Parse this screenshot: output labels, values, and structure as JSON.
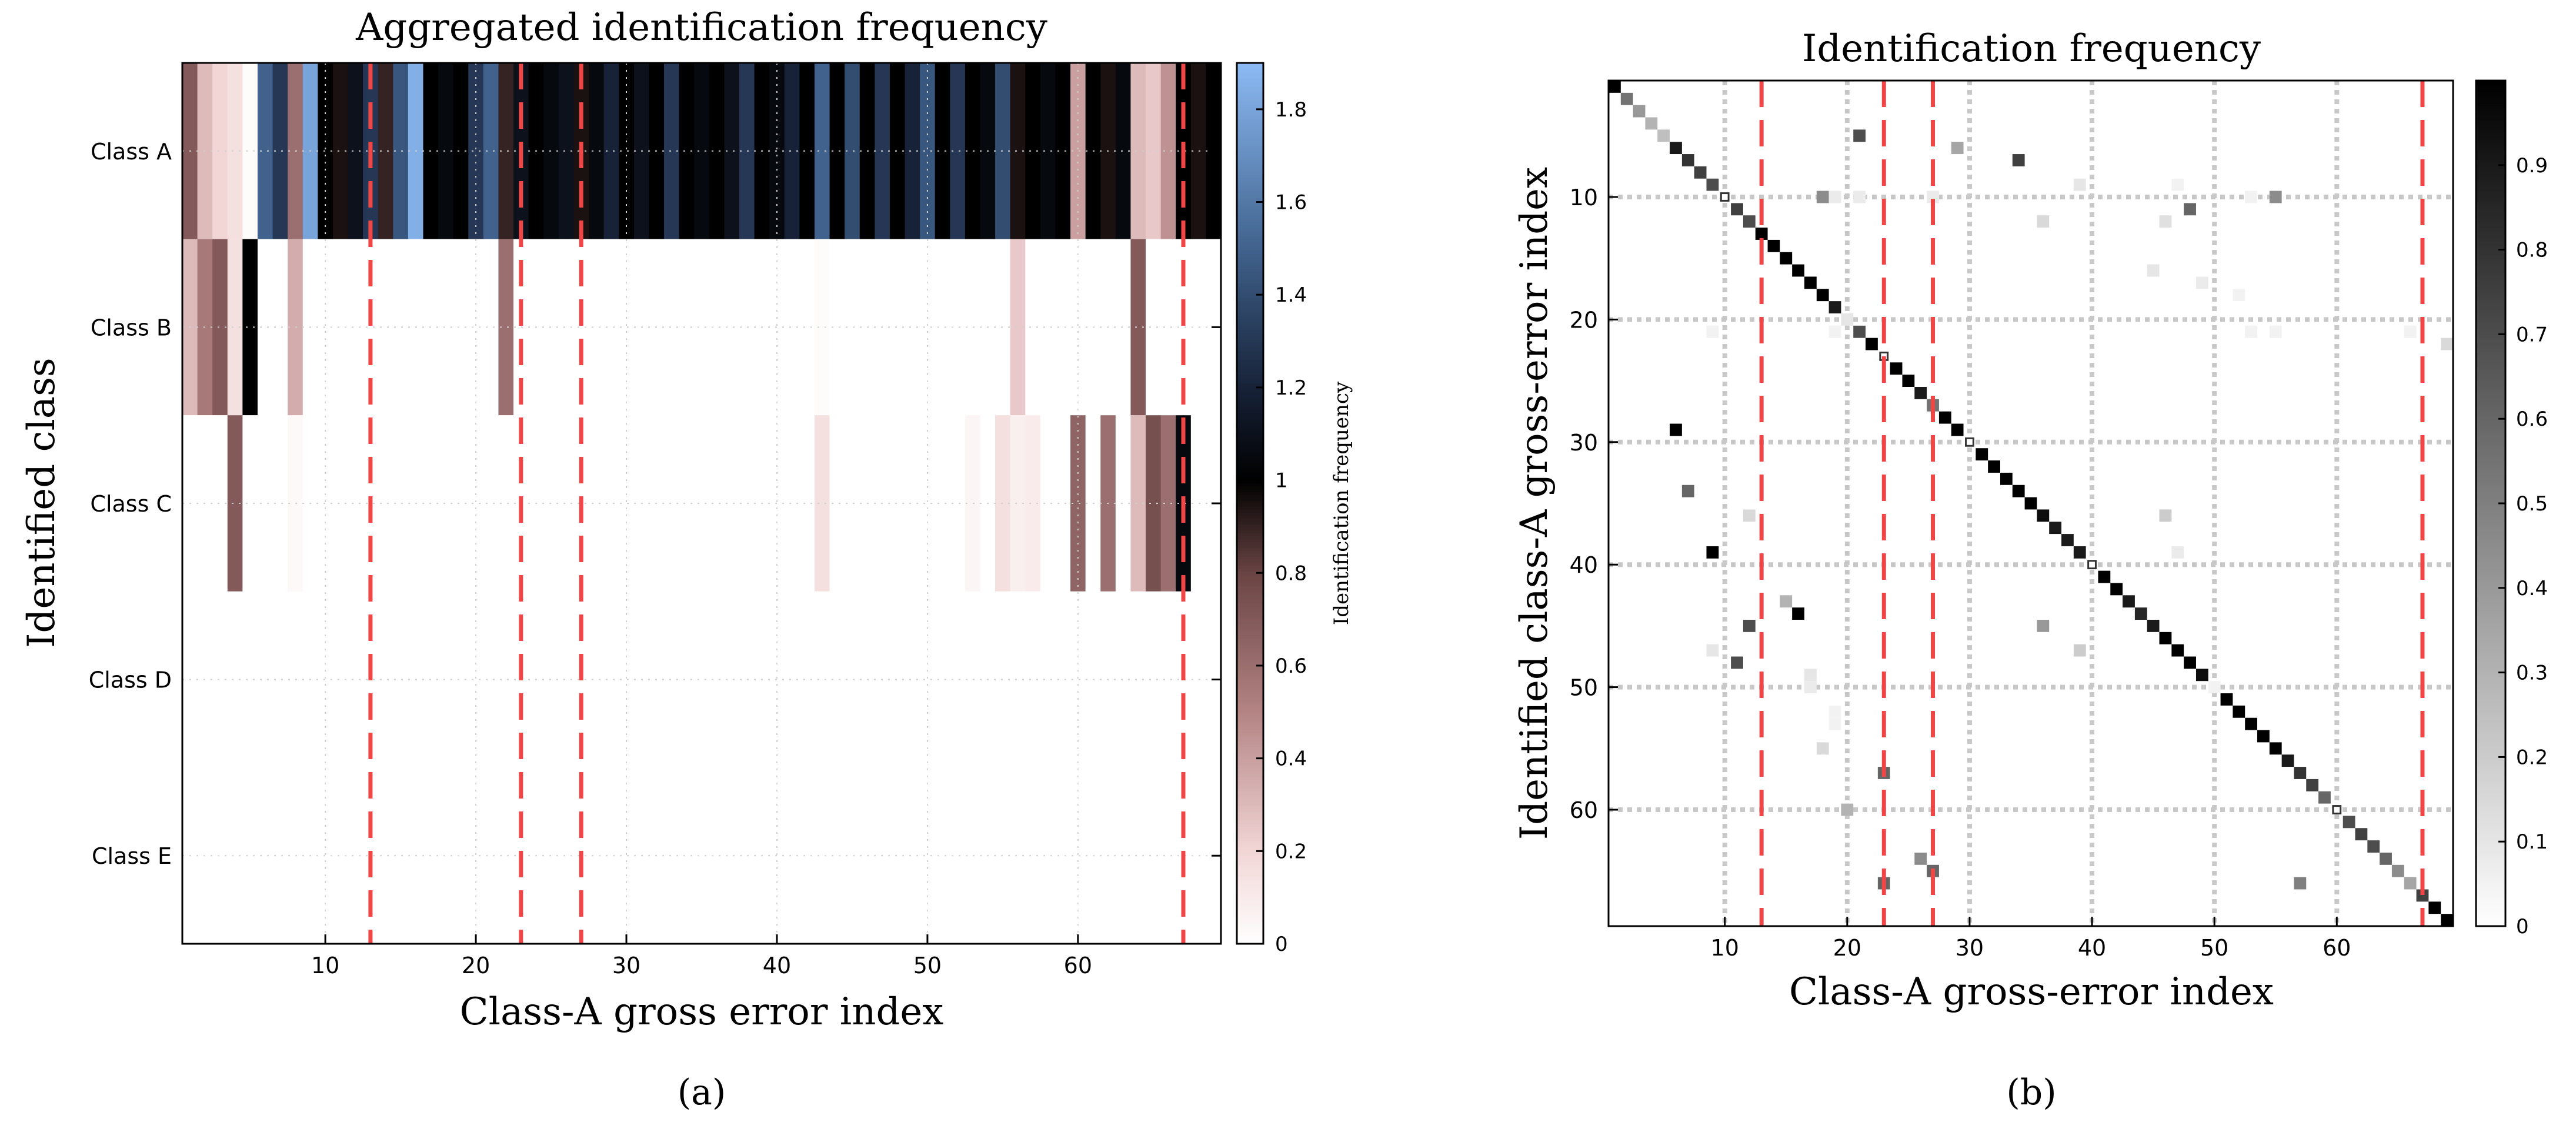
{
  "chart_data": [
    {
      "panel": "a",
      "type": "heatmap",
      "title": "Aggregated identification frequency",
      "xlabel": "Class-A gross error index",
      "ylabel": "Identified class",
      "colorbar_label": "Identification frequency",
      "x_ticks": [
        10,
        20,
        30,
        40,
        50,
        60
      ],
      "xlim": [
        0.5,
        69.5
      ],
      "categories": [
        "Class A",
        "Class B",
        "Class C",
        "Class D",
        "Class E"
      ],
      "colorbar_ticks": [
        0,
        0.2,
        0.4,
        0.6,
        0.8,
        1,
        1.2,
        1.4,
        1.6,
        1.8
      ],
      "colorbar_range": [
        0,
        1.9
      ],
      "colormap": [
        {
          "v": 0.0,
          "c": "#ffffff"
        },
        {
          "v": 0.2,
          "c": "#f2d6d6"
        },
        {
          "v": 0.5,
          "c": "#b48484"
        },
        {
          "v": 0.8,
          "c": "#6a4444"
        },
        {
          "v": 1.0,
          "c": "#000000"
        },
        {
          "v": 1.2,
          "c": "#172238"
        },
        {
          "v": 1.5,
          "c": "#40628c"
        },
        {
          "v": 1.9,
          "c": "#8cbaf4"
        }
      ],
      "red_dashed_x": [
        13,
        23,
        27,
        67
      ],
      "rows": {
        "Class A": [
          0.7,
          0.3,
          0.2,
          0.15,
          0.02,
          1.5,
          1.3,
          0.6,
          1.8,
          1.0,
          0.95,
          1.1,
          1.3,
          0.9,
          1.45,
          1.85,
          1.0,
          1.05,
          1.0,
          1.3,
          1.5,
          0.9,
          1.1,
          1.0,
          1.05,
          1.1,
          0.95,
          1.05,
          1.2,
          1.0,
          1.1,
          1.0,
          1.3,
          1.0,
          1.05,
          1.0,
          1.1,
          1.3,
          1.0,
          1.05,
          1.2,
          1.0,
          1.5,
          1.0,
          1.4,
          1.0,
          1.3,
          1.0,
          1.2,
          1.45,
          1.0,
          1.3,
          1.0,
          1.05,
          1.4,
          0.95,
          1.0,
          1.05,
          1.0,
          0.4,
          1.0,
          0.95,
          1.05,
          0.3,
          0.25,
          0.45,
          1.0,
          0.95,
          1.0
        ],
        "Class B": [
          0.3,
          0.55,
          0.7,
          0.15,
          1.0,
          0.0,
          0.0,
          0.35,
          0.0,
          0.0,
          0.0,
          0.0,
          0.0,
          0.0,
          0.0,
          0.0,
          0.0,
          0.0,
          0.0,
          0.0,
          0.0,
          0.6,
          0.0,
          0.0,
          0.0,
          0.0,
          0.0,
          0.0,
          0.0,
          0.0,
          0.0,
          0.0,
          0.0,
          0.0,
          0.0,
          0.0,
          0.0,
          0.0,
          0.0,
          0.0,
          0.0,
          0.0,
          0.02,
          0.0,
          0.0,
          0.0,
          0.0,
          0.0,
          0.0,
          0.0,
          0.0,
          0.0,
          0.0,
          0.0,
          0.0,
          0.25,
          0.0,
          0.0,
          0.0,
          0.0,
          0.0,
          0.0,
          0.0,
          0.7,
          0.0,
          0.0,
          0.0,
          0.0,
          0.0
        ],
        "Class C": [
          0.0,
          0.0,
          0.0,
          0.7,
          0.0,
          0.0,
          0.0,
          0.03,
          0.0,
          0.0,
          0.0,
          0.0,
          0.0,
          0.0,
          0.0,
          0.0,
          0.0,
          0.0,
          0.0,
          0.0,
          0.0,
          0.0,
          0.0,
          0.0,
          0.0,
          0.0,
          0.0,
          0.0,
          0.0,
          0.0,
          0.0,
          0.0,
          0.0,
          0.0,
          0.0,
          0.0,
          0.0,
          0.0,
          0.0,
          0.0,
          0.0,
          0.0,
          0.15,
          0.0,
          0.0,
          0.0,
          0.0,
          0.0,
          0.0,
          0.0,
          0.0,
          0.0,
          0.05,
          0.0,
          0.15,
          0.08,
          0.1,
          0.0,
          0.0,
          0.65,
          0.0,
          0.6,
          0.0,
          0.3,
          0.75,
          0.6,
          1.05,
          0.0,
          0.0
        ],
        "Class D": [
          0,
          0,
          0,
          0,
          0,
          0,
          0,
          0,
          0,
          0,
          0,
          0,
          0,
          0,
          0,
          0,
          0,
          0,
          0,
          0,
          0,
          0,
          0,
          0,
          0,
          0,
          0,
          0,
          0,
          0,
          0,
          0,
          0,
          0,
          0,
          0,
          0,
          0,
          0,
          0,
          0,
          0,
          0,
          0,
          0,
          0,
          0,
          0,
          0,
          0,
          0,
          0,
          0,
          0,
          0,
          0,
          0,
          0,
          0,
          0,
          0,
          0,
          0,
          0,
          0,
          0,
          0,
          0,
          0
        ],
        "Class E": [
          0,
          0,
          0,
          0,
          0,
          0,
          0,
          0,
          0,
          0,
          0,
          0,
          0,
          0,
          0,
          0,
          0,
          0,
          0,
          0,
          0,
          0,
          0,
          0,
          0,
          0,
          0,
          0,
          0,
          0,
          0,
          0,
          0,
          0,
          0,
          0,
          0,
          0,
          0,
          0,
          0,
          0,
          0,
          0,
          0,
          0,
          0,
          0,
          0,
          0,
          0,
          0,
          0,
          0,
          0,
          0,
          0,
          0,
          0,
          0,
          0,
          0,
          0,
          0,
          0,
          0,
          0,
          0,
          0
        ]
      },
      "grid": true
    },
    {
      "panel": "b",
      "type": "heatmap",
      "title": "Identification frequency",
      "xlabel": "Class-A gross-error index",
      "ylabel": "Identified class-A gross-error index",
      "x_ticks": [
        10,
        20,
        30,
        40,
        50,
        60
      ],
      "y_ticks": [
        10,
        20,
        30,
        40,
        50,
        60
      ],
      "xlim": [
        0.5,
        69.5
      ],
      "ylim": [
        0.5,
        69.5
      ],
      "y_inverted": true,
      "colorbar_ticks": [
        0,
        0.1,
        0.2,
        0.3,
        0.4,
        0.5,
        0.6,
        0.7,
        0.8,
        0.9
      ],
      "colorbar_range": [
        0,
        1
      ],
      "colormap": [
        {
          "v": 0.0,
          "c": "#ffffff"
        },
        {
          "v": 1.0,
          "c": "#000000"
        }
      ],
      "red_dashed_x": [
        13,
        23,
        27,
        67
      ],
      "diagonal": [
        1.0,
        0.55,
        0.4,
        0.3,
        0.25,
        0.9,
        0.8,
        0.75,
        0.7,
        0.0,
        0.75,
        0.7,
        1.0,
        1.0,
        1.0,
        1.0,
        1.0,
        1.0,
        0.9,
        0.1,
        0.7,
        1.0,
        0.0,
        1.0,
        1.0,
        0.9,
        0.55,
        1.0,
        1.0,
        0.0,
        1.0,
        1.0,
        1.0,
        1.0,
        1.0,
        0.95,
        0.9,
        0.9,
        0.9,
        0.0,
        1.0,
        1.0,
        0.9,
        0.85,
        0.9,
        1.0,
        1.0,
        1.0,
        0.95,
        0.05,
        1.0,
        1.0,
        1.0,
        1.0,
        1.0,
        0.9,
        0.8,
        0.75,
        0.6,
        0.0,
        0.7,
        0.75,
        0.7,
        0.6,
        0.45,
        0.35,
        0.75,
        1.0,
        1.0
      ],
      "off_diagonal": [
        {
          "x": 21,
          "y": 5,
          "v": 0.7
        },
        {
          "x": 29,
          "y": 6,
          "v": 0.35
        },
        {
          "x": 34,
          "y": 7,
          "v": 0.75
        },
        {
          "x": 18,
          "y": 10,
          "v": 0.45
        },
        {
          "x": 19,
          "y": 10,
          "v": 0.08
        },
        {
          "x": 21,
          "y": 10,
          "v": 0.08
        },
        {
          "x": 27,
          "y": 10,
          "v": 0.08
        },
        {
          "x": 48,
          "y": 11,
          "v": 0.6
        },
        {
          "x": 55,
          "y": 10,
          "v": 0.45
        },
        {
          "x": 53,
          "y": 10,
          "v": 0.05
        },
        {
          "x": 36,
          "y": 12,
          "v": 0.15
        },
        {
          "x": 46,
          "y": 12,
          "v": 0.12
        },
        {
          "x": 39,
          "y": 9,
          "v": 0.1
        },
        {
          "x": 47,
          "y": 9,
          "v": 0.05
        },
        {
          "x": 45,
          "y": 16,
          "v": 0.1
        },
        {
          "x": 49,
          "y": 17,
          "v": 0.08
        },
        {
          "x": 52,
          "y": 18,
          "v": 0.05
        },
        {
          "x": 9,
          "y": 21,
          "v": 0.05
        },
        {
          "x": 19,
          "y": 21,
          "v": 0.05
        },
        {
          "x": 53,
          "y": 21,
          "v": 0.05
        },
        {
          "x": 55,
          "y": 21,
          "v": 0.05
        },
        {
          "x": 66,
          "y": 21,
          "v": 0.05
        },
        {
          "x": 69,
          "y": 22,
          "v": 0.15
        },
        {
          "x": 6,
          "y": 29,
          "v": 1.0
        },
        {
          "x": 7,
          "y": 34,
          "v": 0.6
        },
        {
          "x": 12,
          "y": 36,
          "v": 0.15
        },
        {
          "x": 9,
          "y": 39,
          "v": 1.0
        },
        {
          "x": 46,
          "y": 36,
          "v": 0.2
        },
        {
          "x": 47,
          "y": 39,
          "v": 0.08
        },
        {
          "x": 15,
          "y": 43,
          "v": 0.3
        },
        {
          "x": 16,
          "y": 44,
          "v": 1.0
        },
        {
          "x": 12,
          "y": 45,
          "v": 0.7
        },
        {
          "x": 36,
          "y": 45,
          "v": 0.4
        },
        {
          "x": 9,
          "y": 47,
          "v": 0.1
        },
        {
          "x": 11,
          "y": 48,
          "v": 0.7
        },
        {
          "x": 39,
          "y": 47,
          "v": 0.2
        },
        {
          "x": 17,
          "y": 49,
          "v": 0.1
        },
        {
          "x": 17,
          "y": 50,
          "v": 0.08
        },
        {
          "x": 19,
          "y": 52,
          "v": 0.05
        },
        {
          "x": 19,
          "y": 53,
          "v": 0.05
        },
        {
          "x": 18,
          "y": 55,
          "v": 0.15
        },
        {
          "x": 23,
          "y": 57,
          "v": 0.6
        },
        {
          "x": 20,
          "y": 60,
          "v": 0.3
        },
        {
          "x": 26,
          "y": 64,
          "v": 0.45
        },
        {
          "x": 27,
          "y": 65,
          "v": 0.6
        },
        {
          "x": 23,
          "y": 66,
          "v": 0.6
        },
        {
          "x": 57,
          "y": 66,
          "v": 0.5
        }
      ],
      "grid": true
    }
  ],
  "panel_labels": {
    "a": "(a)",
    "b": "(b)"
  }
}
